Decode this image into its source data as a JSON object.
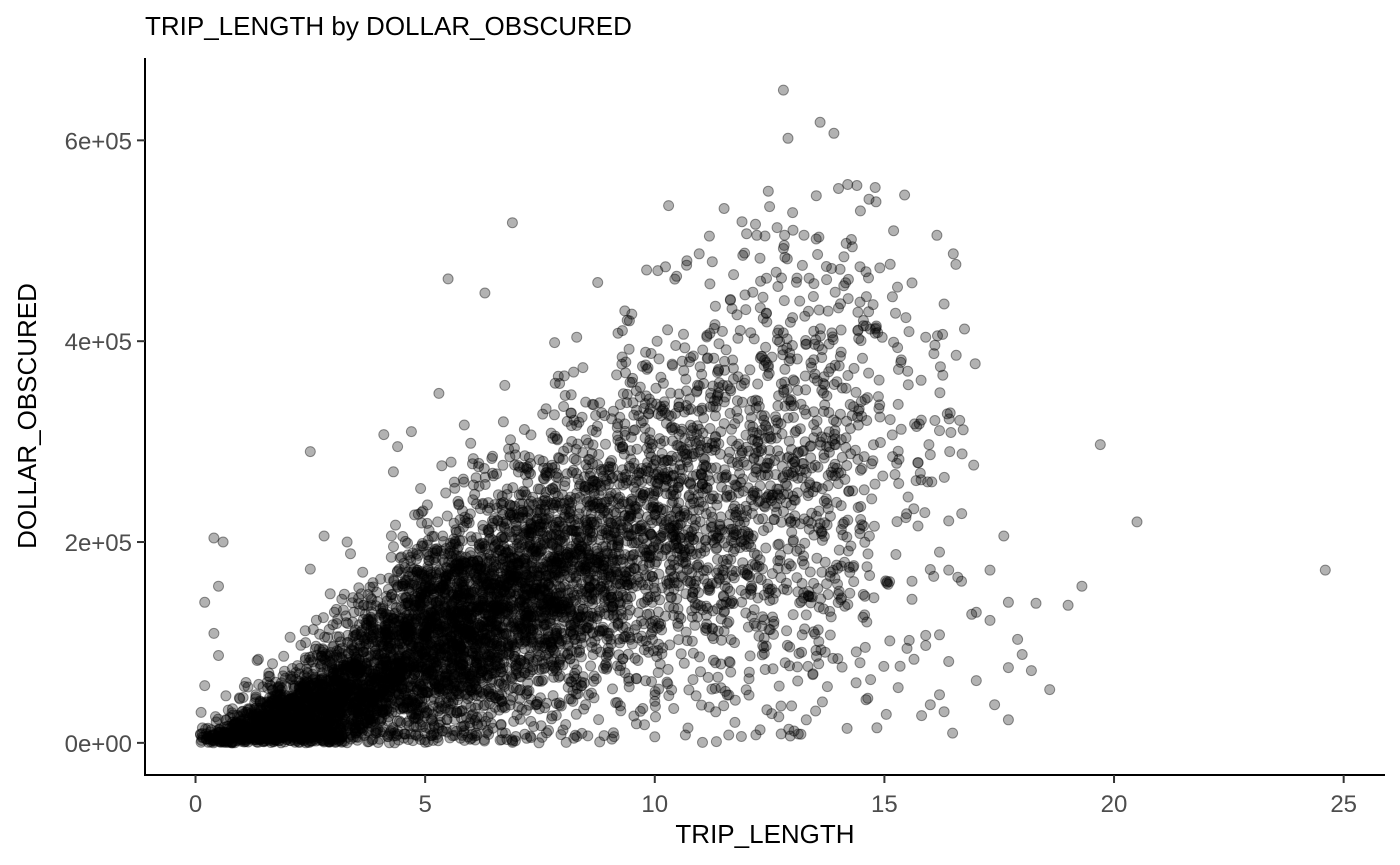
{
  "chart_data": {
    "type": "scatter",
    "title": "TRIP_LENGTH by DOLLAR_OBSCURED",
    "xlabel": "TRIP_LENGTH",
    "ylabel": "DOLLAR_OBSCURED",
    "xlim": [
      -1.1,
      25.9
    ],
    "ylim": [
      -32000,
      682000
    ],
    "x_ticks": [
      0,
      5,
      10,
      15,
      20,
      25
    ],
    "x_tick_labels": [
      "0",
      "5",
      "10",
      "15",
      "20",
      "25"
    ],
    "y_ticks": [
      0,
      200000,
      400000,
      600000
    ],
    "y_tick_labels": [
      "0e+00",
      "2e+05",
      "4e+05",
      "6e+05"
    ],
    "grid": false,
    "legend": "none",
    "point_color": "#000000",
    "point_alpha": 0.3,
    "series": [
      {
        "points": [
          [
            12.8,
            650000
          ],
          [
            13.6,
            618000
          ],
          [
            13.9,
            607000
          ],
          [
            12.9,
            602000
          ],
          [
            14.2,
            556000
          ],
          [
            14.4,
            555000
          ],
          [
            14.8,
            553000
          ],
          [
            14.0,
            552000
          ],
          [
            10.3,
            535000
          ],
          [
            12.5,
            534000
          ],
          [
            6.9,
            518000
          ],
          [
            11.9,
            519000
          ],
          [
            13.0,
            528000
          ],
          [
            15.2,
            510000
          ],
          [
            12.0,
            507000
          ],
          [
            16.5,
            487000
          ],
          [
            14.3,
            494000
          ],
          [
            10.7,
            480000
          ],
          [
            5.5,
            462000
          ],
          [
            6.3,
            448000
          ],
          [
            15.6,
            458000
          ],
          [
            14.9,
            473000
          ],
          [
            11.2,
            457000
          ],
          [
            16.3,
            437000
          ],
          [
            9.5,
            427000
          ],
          [
            8.3,
            404000
          ],
          [
            9.2,
            408000
          ],
          [
            15.9,
            404000
          ],
          [
            14.8,
            408000
          ],
          [
            15.2,
            399000
          ],
          [
            16.1,
            396000
          ],
          [
            9.8,
            389000
          ],
          [
            5.3,
            348000
          ],
          [
            7.9,
            365000
          ],
          [
            15.8,
            361000
          ],
          [
            15.3,
            337000
          ],
          [
            15.7,
            315000
          ],
          [
            16.1,
            321000
          ],
          [
            16.2,
            311000
          ],
          [
            19.7,
            297000
          ],
          [
            4.1,
            307000
          ],
          [
            4.7,
            310000
          ],
          [
            4.4,
            295000
          ],
          [
            2.5,
            290000
          ],
          [
            16.0,
            287000
          ],
          [
            15.8,
            262000
          ],
          [
            16.4,
            221000
          ],
          [
            20.5,
            220000
          ],
          [
            17.6,
            206000
          ],
          [
            16.2,
            190000
          ],
          [
            17.3,
            172000
          ],
          [
            24.6,
            172000
          ],
          [
            19.3,
            156000
          ],
          [
            18.3,
            139000
          ],
          [
            17.7,
            140000
          ],
          [
            19.0,
            137000
          ],
          [
            17.0,
            130000
          ],
          [
            16.9,
            128000
          ],
          [
            17.3,
            122000
          ],
          [
            17.9,
            103000
          ],
          [
            18.0,
            88000
          ],
          [
            16.4,
            81000
          ],
          [
            17.7,
            75000
          ],
          [
            18.2,
            72000
          ],
          [
            17.0,
            62000
          ],
          [
            18.6,
            53000
          ],
          [
            17.4,
            38000
          ],
          [
            17.7,
            23000
          ],
          [
            16.0,
            38000
          ],
          [
            16.3,
            31000
          ],
          [
            16.2,
            48000
          ],
          [
            15.9,
            107000
          ],
          [
            0.4,
            204000
          ],
          [
            0.6,
            200000
          ],
          [
            0.5,
            156000
          ],
          [
            0.2,
            140000
          ],
          [
            0.4,
            109000
          ],
          [
            0.5,
            87000
          ],
          [
            0.2,
            57000
          ],
          [
            2.8,
            206000
          ],
          [
            2.5,
            173000
          ],
          [
            3.3,
            200000
          ],
          [
            9.6,
            19000
          ],
          [
            8.8,
            1000
          ],
          [
            10.0,
            6000
          ],
          [
            9.1,
            10000
          ],
          [
            11.5,
            37000
          ],
          [
            13.3,
            23000
          ],
          [
            12.7,
            26000
          ],
          [
            14.6,
            43000
          ],
          [
            14.7,
            63000
          ],
          [
            15.3,
            55000
          ],
          [
            15.9,
            97000
          ],
          [
            15.6,
            143000
          ],
          [
            15.6,
            161000
          ],
          [
            16.4,
            172000
          ]
        ]
      }
    ],
    "generated_clusters": [
      {
        "cx": 5.5,
        "cy": 110000,
        "sx": 2.1,
        "sy": 62000,
        "n": 2800
      },
      {
        "cx": 7.5,
        "cy": 150000,
        "sx": 2.6,
        "sy": 70000,
        "n": 1600
      },
      {
        "cx": 2.3,
        "cy": 25000,
        "sx": 1.1,
        "sy": 22000,
        "n": 1100
      },
      {
        "cx": 11.5,
        "cy": 230000,
        "sx": 2.0,
        "sy": 110000,
        "n": 800
      },
      {
        "cx": 13.5,
        "cy": 260000,
        "sx": 1.6,
        "sy": 120000,
        "n": 350
      },
      {
        "cx": 10.0,
        "cy": 300000,
        "sx": 2.2,
        "sy": 80000,
        "n": 250
      }
    ]
  }
}
